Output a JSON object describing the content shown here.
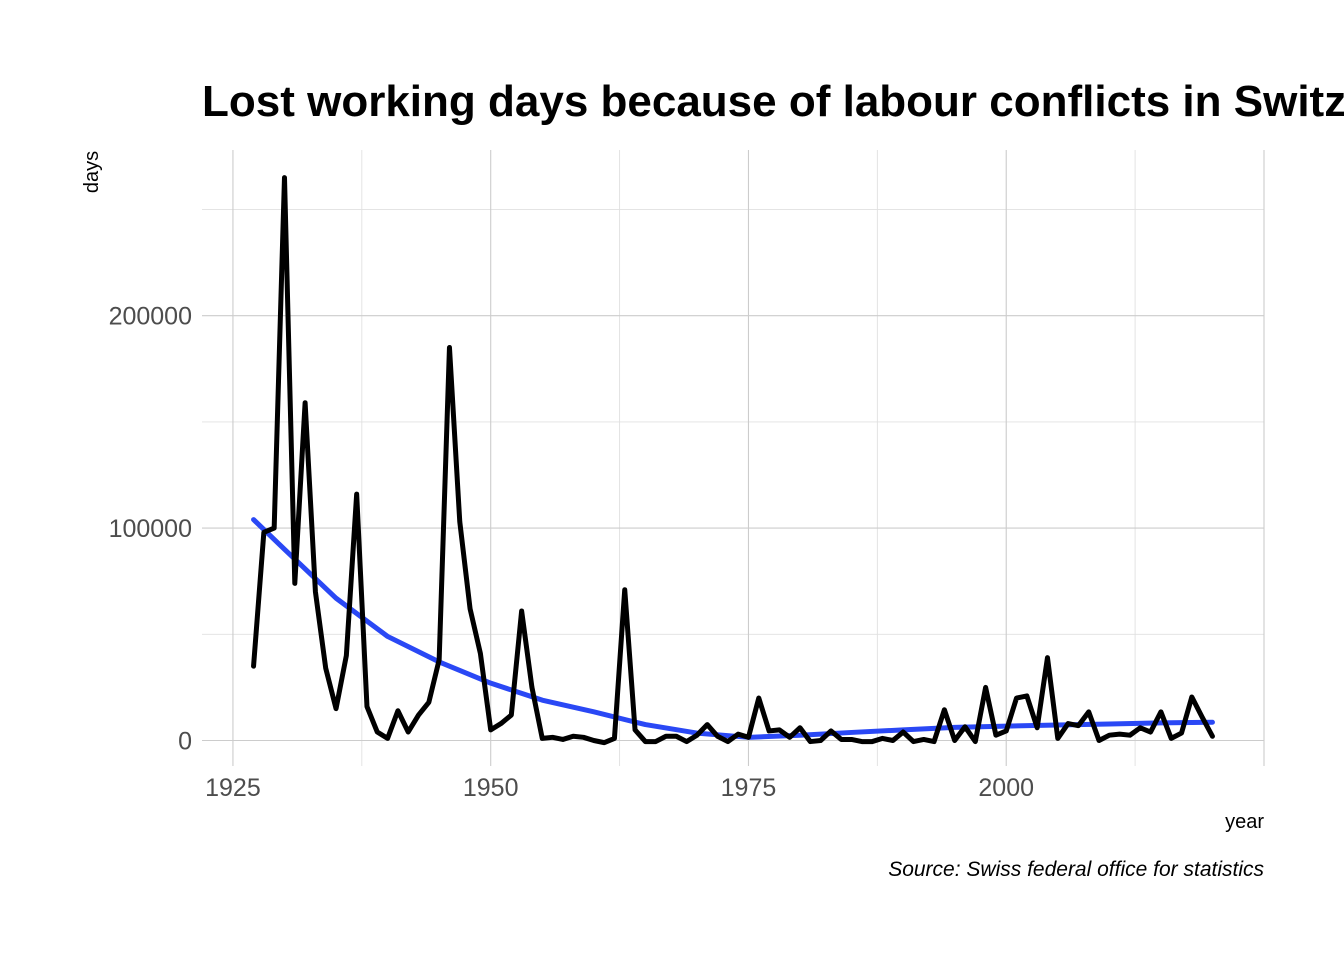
{
  "chart_data": {
    "type": "line",
    "title": "Lost working days because of labour conflicts in Switzerland",
    "xlabel": "year",
    "ylabel": "days",
    "caption": "Source: Swiss federal office for statistics",
    "xlim": [
      1922,
      2025
    ],
    "ylim": [
      -12000,
      278000
    ],
    "x_ticks": [
      1925,
      1950,
      1975,
      2000
    ],
    "y_ticks": [
      0,
      100000,
      200000
    ],
    "grid": true,
    "series": [
      {
        "color": "#000000",
        "x": [
          1927,
          1928,
          1929,
          1930,
          1931,
          1932,
          1933,
          1934,
          1935,
          1936,
          1937,
          1938,
          1939,
          1940,
          1941,
          1942,
          1943,
          1944,
          1945,
          1946,
          1947,
          1948,
          1949,
          1950,
          1951,
          1952,
          1953,
          1954,
          1955,
          1956,
          1957,
          1958,
          1959,
          1960,
          1961,
          1962,
          1963,
          1964,
          1965,
          1966,
          1967,
          1968,
          1969,
          1970,
          1971,
          1972,
          1973,
          1974,
          1975,
          1976,
          1977,
          1978,
          1979,
          1980,
          1981,
          1982,
          1983,
          1984,
          1985,
          1986,
          1987,
          1988,
          1989,
          1990,
          1991,
          1992,
          1993,
          1994,
          1995,
          1996,
          1997,
          1998,
          1999,
          2000,
          2001,
          2002,
          2003,
          2004,
          2005,
          2006,
          2007,
          2008,
          2009,
          2010,
          2011,
          2012,
          2013,
          2014,
          2015,
          2016,
          2017,
          2018,
          2019,
          2020
        ],
        "values": [
          35000,
          98000,
          100000,
          265000,
          74000,
          159000,
          70000,
          34000,
          15000,
          40000,
          116000,
          16000,
          4000,
          1000,
          14000,
          4000,
          12000,
          18000,
          38000,
          185000,
          103000,
          62000,
          41000,
          5000,
          8000,
          12000,
          61000,
          25000,
          1000,
          1500,
          500,
          2000,
          1500,
          0,
          -1000,
          1000,
          71000,
          5000,
          -500,
          -500,
          2000,
          2000,
          -500,
          2500,
          7500,
          2000,
          -500,
          3000,
          1500,
          20000,
          4500,
          5000,
          1500,
          6000,
          -500,
          0,
          4500,
          500,
          500,
          -500,
          -500,
          1000,
          0,
          4000,
          -500,
          500,
          -500,
          14500,
          0,
          6500,
          -500,
          25000,
          2500,
          4500,
          20000,
          21000,
          6000,
          39000,
          1000,
          8000,
          7000,
          13500,
          0,
          2500,
          3000,
          2500,
          6000,
          4000,
          13500,
          1000,
          3500,
          20500,
          11000,
          2000
        ]
      },
      {
        "color": "#2a48f5",
        "x": [
          1927,
          1930,
          1935,
          1940,
          1945,
          1950,
          1955,
          1960,
          1965,
          1970,
          1975,
          1980,
          1985,
          1990,
          1995,
          2000,
          2005,
          2010,
          2015,
          2020
        ],
        "values": [
          104000,
          90000,
          67000,
          49000,
          37000,
          27000,
          19000,
          13500,
          7500,
          3500,
          1500,
          2500,
          3800,
          5000,
          6200,
          6800,
          7300,
          7800,
          8300,
          8600
        ]
      }
    ]
  }
}
